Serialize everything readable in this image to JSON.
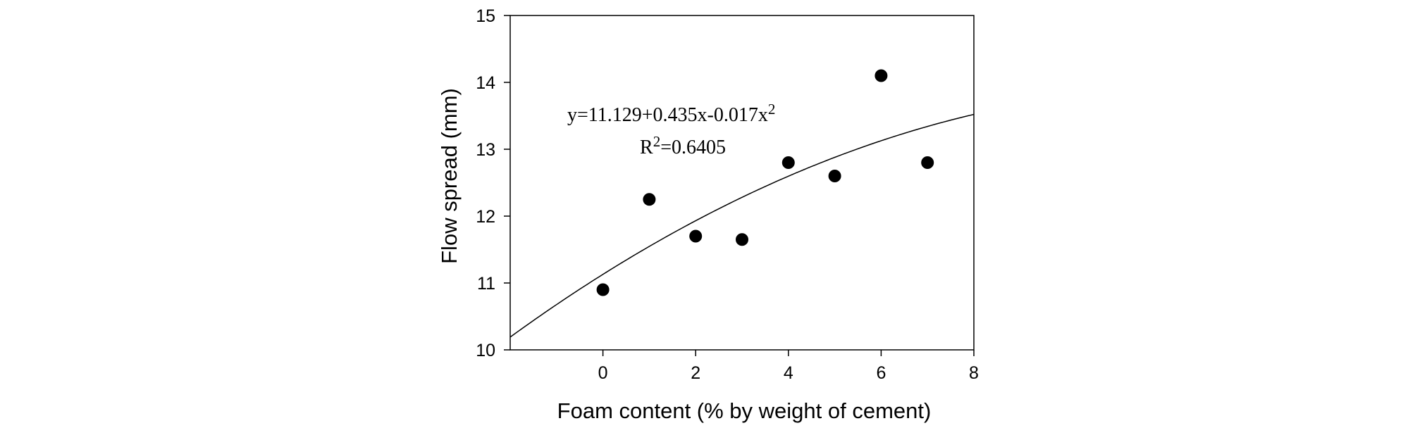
{
  "chart_data": {
    "type": "scatter",
    "xlabel": "Foam content (% by weight of cement)",
    "ylabel": "Flow spread (mm)",
    "xlim": [
      -2,
      8
    ],
    "ylim": [
      10,
      15
    ],
    "xticks": [
      0,
      2,
      4,
      6,
      8
    ],
    "yticks": [
      10,
      11,
      12,
      13,
      14,
      15
    ],
    "grid": false,
    "series": [
      {
        "x": [
          0,
          1,
          2,
          3,
          4,
          5,
          6,
          7
        ],
        "y": [
          10.9,
          12.25,
          11.7,
          11.65,
          12.8,
          12.6,
          14.1,
          12.8
        ]
      }
    ],
    "fit": {
      "type": "quadratic",
      "coefficients": [
        11.129,
        0.435,
        -0.017
      ],
      "equation_main": "y=11.129+0.435x-0.017x",
      "equation_sup": "2",
      "r2_prefix": "R",
      "r2_sup": "2",
      "r2_value": "=0.6405"
    }
  }
}
